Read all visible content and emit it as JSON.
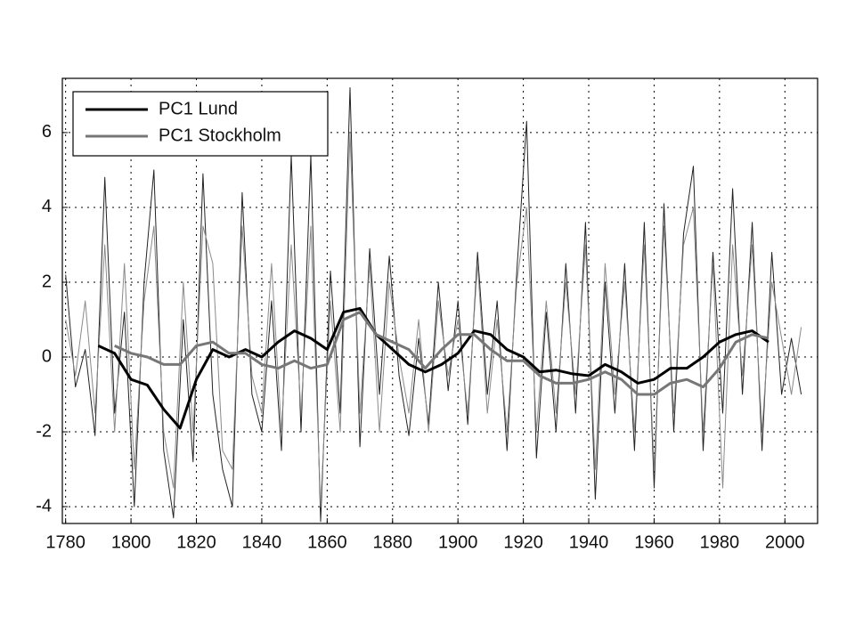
{
  "chart_data": {
    "type": "line",
    "xlim": [
      1779,
      2010
    ],
    "xticks": [
      1780,
      1800,
      1820,
      1840,
      1860,
      1880,
      1900,
      1920,
      1940,
      1960,
      1980,
      2000
    ],
    "ylim": [
      -4.45,
      7.45
    ],
    "yticks": [
      -4,
      -2,
      0,
      2,
      4,
      6
    ],
    "grid": true,
    "legend": "upper-left",
    "series": [
      {
        "color": "#222222",
        "width": 1,
        "x": [
          1780,
          1783,
          1786,
          1789,
          1792,
          1795,
          1798,
          1801,
          1804,
          1807,
          1810,
          1813,
          1816,
          1819,
          1822,
          1825,
          1828,
          1831,
          1834,
          1837,
          1840,
          1843,
          1846,
          1849,
          1852,
          1855,
          1858,
          1861,
          1864,
          1867,
          1870,
          1873,
          1876,
          1879,
          1882,
          1885,
          1888,
          1891,
          1894,
          1897,
          1900,
          1903,
          1906,
          1909,
          1912,
          1915,
          1918,
          1921,
          1924,
          1927,
          1930,
          1933,
          1936,
          1939,
          1942,
          1945,
          1948,
          1951,
          1954,
          1957,
          1960,
          1963,
          1966,
          1969,
          1972,
          1975,
          1978,
          1981,
          1984,
          1987,
          1990,
          1993,
          1996,
          1999,
          2002,
          2005
        ],
        "values": [
          2.2,
          -0.8,
          0.2,
          -2.1,
          4.8,
          -1.5,
          1.2,
          -4.0,
          2.0,
          5.0,
          -2.5,
          -4.3,
          1.0,
          -2.8,
          4.9,
          -1.0,
          -3.0,
          -4.0,
          4.4,
          -1.0,
          -2.0,
          1.5,
          -2.5,
          5.4,
          -2.0,
          5.4,
          -4.4,
          2.3,
          -1.5,
          7.2,
          -2.4,
          2.9,
          -1.0,
          2.7,
          -0.5,
          -2.1,
          0.5,
          -1.8,
          2.0,
          -0.9,
          1.5,
          -1.8,
          2.8,
          -1.0,
          1.5,
          -2.5,
          2.3,
          6.3,
          -2.7,
          1.2,
          -2.0,
          2.5,
          -1.5,
          3.6,
          -3.8,
          2.0,
          -1.5,
          2.5,
          -2.5,
          3.6,
          -3.5,
          4.1,
          -2.0,
          3.3,
          5.1,
          -2.5,
          2.8,
          -1.5,
          4.5,
          -1.0,
          3.6,
          -2.5,
          2.8,
          -1.0,
          0.5,
          -1.0
        ]
      },
      {
        "color": "#8a8a8a",
        "width": 1,
        "x": [
          1780,
          1783,
          1786,
          1789,
          1792,
          1795,
          1798,
          1801,
          1804,
          1807,
          1810,
          1813,
          1816,
          1819,
          1822,
          1825,
          1828,
          1831,
          1834,
          1837,
          1840,
          1843,
          1846,
          1849,
          1852,
          1855,
          1858,
          1861,
          1864,
          1867,
          1870,
          1873,
          1876,
          1879,
          1882,
          1885,
          1888,
          1891,
          1894,
          1897,
          1900,
          1903,
          1906,
          1909,
          1912,
          1915,
          1918,
          1921,
          1924,
          1927,
          1930,
          1933,
          1936,
          1939,
          1942,
          1945,
          1948,
          1951,
          1954,
          1957,
          1960,
          1963,
          1966,
          1969,
          1972,
          1975,
          1978,
          1981,
          1984,
          1987,
          1990,
          1993,
          1996,
          1999,
          2002,
          2005
        ],
        "values": [
          1.0,
          -0.5,
          1.5,
          -1.5,
          3.0,
          -2.0,
          2.5,
          -3.0,
          1.5,
          3.5,
          -2.0,
          -3.5,
          2.0,
          -2.0,
          3.5,
          2.5,
          -2.5,
          -3.0,
          3.5,
          -0.5,
          -1.5,
          2.5,
          -2.0,
          3.0,
          -1.5,
          3.5,
          -4.0,
          1.5,
          -2.0,
          6.0,
          -1.5,
          2.5,
          -2.0,
          2.0,
          0.0,
          -1.5,
          1.0,
          -2.0,
          1.5,
          -0.5,
          1.0,
          -1.5,
          2.5,
          -1.5,
          1.0,
          -2.0,
          2.0,
          4.0,
          -2.0,
          1.5,
          -1.5,
          2.0,
          -1.0,
          3.0,
          -3.0,
          2.5,
          -1.0,
          2.0,
          -2.0,
          3.0,
          -3.0,
          3.5,
          -1.5,
          3.0,
          4.0,
          -2.0,
          2.5,
          -3.5,
          3.0,
          -0.5,
          3.0,
          -2.0,
          2.0,
          0.5,
          -1.0,
          0.8
        ]
      },
      {
        "name": "PC1 Lund",
        "color": "#000000",
        "width": 3,
        "x": [
          1790,
          1795,
          1800,
          1805,
          1810,
          1815,
          1820,
          1825,
          1830,
          1835,
          1840,
          1845,
          1850,
          1855,
          1860,
          1865,
          1870,
          1875,
          1880,
          1885,
          1890,
          1895,
          1900,
          1905,
          1910,
          1915,
          1920,
          1925,
          1930,
          1935,
          1940,
          1945,
          1950,
          1955,
          1960,
          1965,
          1970,
          1975,
          1980,
          1985,
          1990,
          1995
        ],
        "values": [
          0.3,
          0.1,
          -0.6,
          -0.75,
          -1.4,
          -1.9,
          -0.6,
          0.2,
          0.0,
          0.2,
          0.0,
          0.4,
          0.7,
          0.5,
          0.2,
          1.2,
          1.3,
          0.6,
          0.2,
          -0.2,
          -0.4,
          -0.2,
          0.1,
          0.7,
          0.6,
          0.2,
          0.0,
          -0.4,
          -0.35,
          -0.45,
          -0.5,
          -0.2,
          -0.4,
          -0.7,
          -0.6,
          -0.3,
          -0.3,
          0.0,
          0.4,
          0.6,
          0.7,
          0.4
        ]
      },
      {
        "name": "PC1 Stockholm",
        "color": "#777777",
        "width": 3,
        "x": [
          1795,
          1800,
          1805,
          1810,
          1815,
          1820,
          1825,
          1830,
          1835,
          1840,
          1845,
          1850,
          1855,
          1860,
          1865,
          1870,
          1875,
          1880,
          1885,
          1890,
          1895,
          1900,
          1905,
          1910,
          1915,
          1920,
          1925,
          1930,
          1935,
          1940,
          1945,
          1950,
          1955,
          1960,
          1965,
          1970,
          1975,
          1980,
          1985,
          1990,
          1995
        ],
        "values": [
          0.3,
          0.1,
          0.0,
          -0.2,
          -0.2,
          0.3,
          0.4,
          0.1,
          0.1,
          -0.2,
          -0.3,
          -0.1,
          -0.3,
          -0.2,
          1.0,
          1.2,
          0.6,
          0.4,
          0.2,
          -0.3,
          0.2,
          0.6,
          0.6,
          0.2,
          -0.1,
          -0.1,
          -0.5,
          -0.7,
          -0.7,
          -0.6,
          -0.4,
          -0.6,
          -1.0,
          -1.0,
          -0.7,
          -0.6,
          -0.8,
          -0.3,
          0.4,
          0.6,
          0.5
        ]
      }
    ]
  }
}
